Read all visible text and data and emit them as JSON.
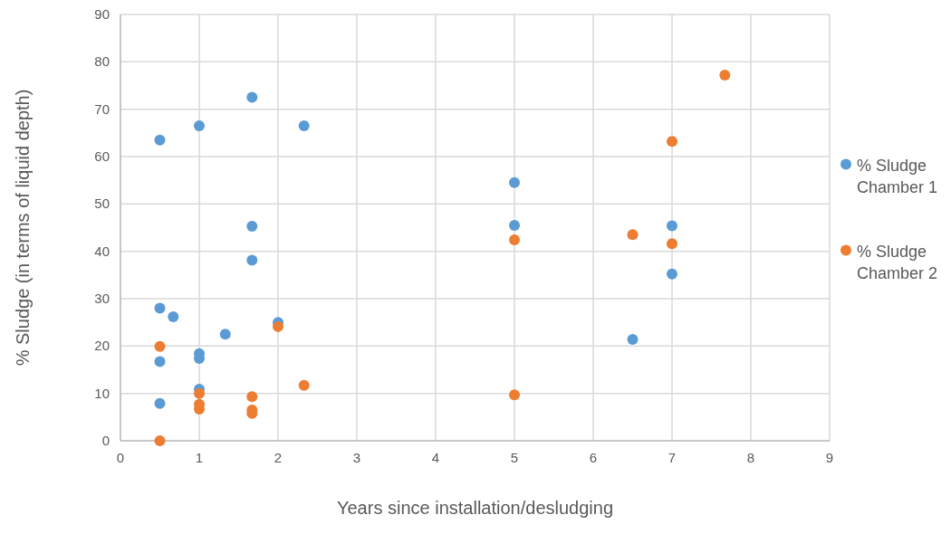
{
  "chart_data": {
    "type": "scatter",
    "xlabel": "Years since installation/desludging",
    "ylabel": "% Sludge (in terms of liquid depth)",
    "xlim": [
      0,
      9
    ],
    "xticks": [
      0,
      1,
      2,
      3,
      4,
      5,
      6,
      7,
      8,
      9
    ],
    "ylim": [
      0,
      90
    ],
    "yticks": [
      0,
      10,
      20,
      30,
      40,
      50,
      60,
      70,
      80,
      90
    ],
    "grid": true,
    "legend": "right",
    "marker": "circle",
    "series": [
      {
        "name": "% Sludge Chamber 1",
        "color": "#5b9bd5",
        "x": [
          0.5,
          1,
          1.67,
          2.33,
          1.67,
          1.67,
          0.5,
          0.67,
          1.33,
          2,
          1,
          1,
          0.5,
          1,
          0.5,
          5,
          5,
          7,
          7,
          6.5
        ],
        "values": [
          63.5,
          66.5,
          72.5,
          66.5,
          45.3,
          38.1,
          28,
          26.2,
          22.5,
          25,
          18.4,
          17.4,
          16.7,
          10.9,
          7.9,
          54.5,
          45.5,
          45.4,
          35.2,
          21.4
        ]
      },
      {
        "name": "% Sludge Chamber 2",
        "color": "#ed7d31",
        "x": [
          0.5,
          2,
          2.33,
          1,
          1,
          1,
          1.67,
          1.67,
          1.67,
          0.5,
          7.67,
          7,
          5,
          6.5,
          7,
          5
        ],
        "values": [
          19.9,
          24.1,
          11.7,
          10,
          7.7,
          6.7,
          9.3,
          6.5,
          5.8,
          0,
          77.2,
          63.2,
          42.4,
          43.5,
          41.6,
          9.7
        ]
      }
    ]
  }
}
